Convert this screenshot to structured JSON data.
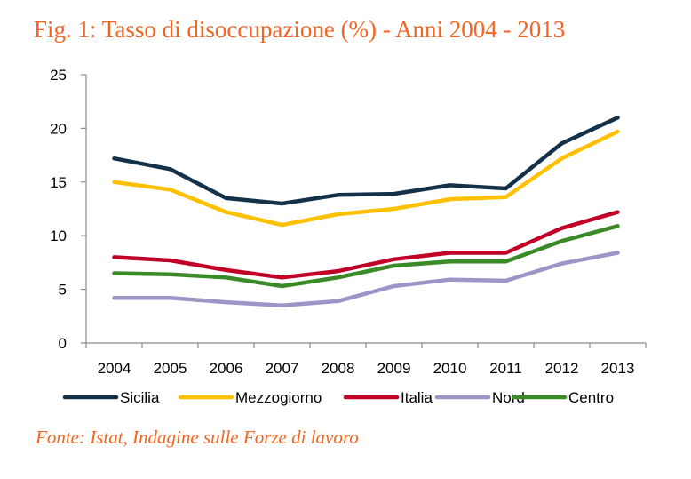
{
  "title": "Fig. 1: Tasso di disoccupazione (%) - Anni 2004 - 2013",
  "source": "Fonte: Istat, Indagine sulle Forze di lavoro",
  "chart_data": {
    "type": "line",
    "title": "Fig. 1: Tasso di disoccupazione (%) - Anni 2004 - 2013",
    "xlabel": "",
    "ylabel": "",
    "x": [
      "2004",
      "2005",
      "2006",
      "2007",
      "2008",
      "2009",
      "2010",
      "2011",
      "2012",
      "2013"
    ],
    "ylim": [
      0,
      25
    ],
    "yticks": [
      0,
      5,
      10,
      15,
      20,
      25
    ],
    "grid": false,
    "legend_position": "bottom",
    "series": [
      {
        "name": "Sicilia",
        "color": "#13324a",
        "values": [
          17.2,
          16.2,
          13.5,
          13.0,
          13.8,
          13.9,
          14.7,
          14.4,
          18.6,
          21.0
        ]
      },
      {
        "name": "Mezzogiorno",
        "color": "#ffc000",
        "values": [
          15.0,
          14.3,
          12.2,
          11.0,
          12.0,
          12.5,
          13.4,
          13.6,
          17.2,
          19.7
        ]
      },
      {
        "name": "Italia",
        "color": "#c00026",
        "values": [
          8.0,
          7.7,
          6.8,
          6.1,
          6.7,
          7.8,
          8.4,
          8.4,
          10.7,
          12.2
        ]
      },
      {
        "name": "Nord",
        "color": "#9d95c8",
        "values": [
          4.2,
          4.2,
          3.8,
          3.5,
          3.9,
          5.3,
          5.9,
          5.8,
          7.4,
          8.4
        ]
      },
      {
        "name": "Centro",
        "color": "#3a8a27",
        "values": [
          6.5,
          6.4,
          6.1,
          5.3,
          6.1,
          7.2,
          7.6,
          7.6,
          9.5,
          10.9
        ]
      }
    ]
  }
}
